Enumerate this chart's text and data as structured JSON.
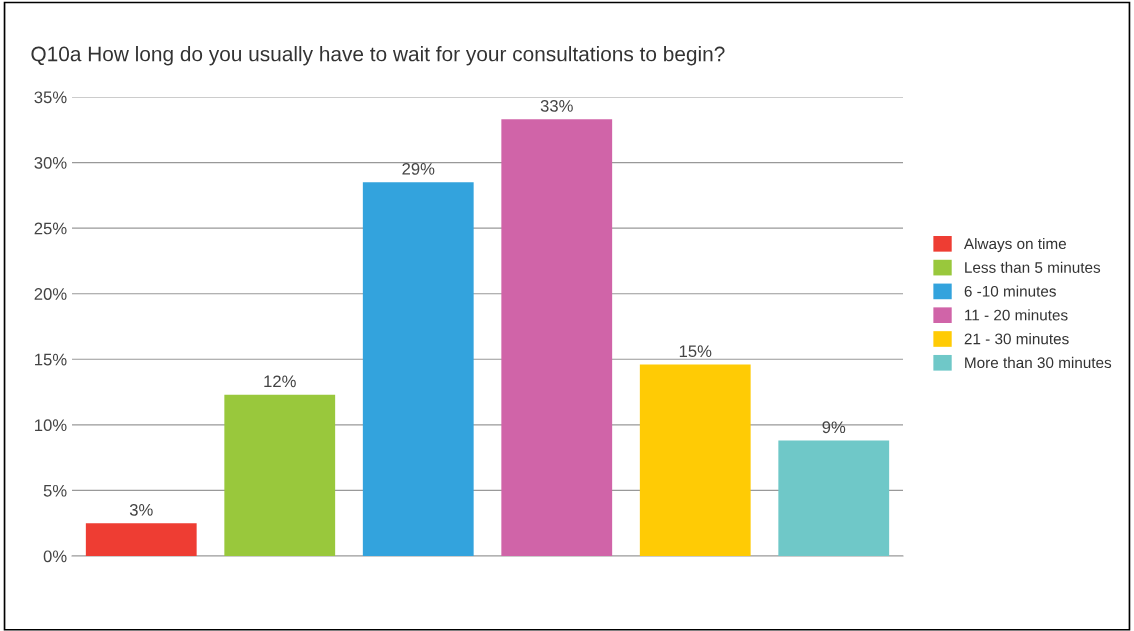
{
  "chart_data": {
    "type": "bar",
    "title": "Q10a How long do you usually have to wait for your consultations to begin?",
    "categories": [
      null,
      null,
      null,
      null,
      null,
      null
    ],
    "series": [
      {
        "name": "Always on time",
        "color": "#ee3d33",
        "values": [
          2.5,
          null,
          null,
          null,
          null,
          null
        ],
        "value_labels": [
          "3%",
          null,
          null,
          null,
          null,
          null
        ]
      },
      {
        "name": "Less than 5 minutes",
        "color": "#99c83c",
        "values": [
          null,
          12.3,
          null,
          null,
          null,
          null
        ],
        "value_labels": [
          null,
          "12%",
          null,
          null,
          null,
          null
        ]
      },
      {
        "name": "6 -10 minutes",
        "color": "#33a3dd",
        "values": [
          null,
          null,
          28.5,
          null,
          null,
          null
        ],
        "value_labels": [
          null,
          null,
          "29%",
          null,
          null,
          null
        ]
      },
      {
        "name": "11 - 20 minutes",
        "color": "#d064a8",
        "values": [
          null,
          null,
          null,
          33.3,
          null,
          null
        ],
        "value_labels": [
          null,
          null,
          null,
          "33%",
          null,
          null
        ]
      },
      {
        "name": "21 - 30 minutes",
        "color": "#ffcb05",
        "values": [
          null,
          null,
          null,
          null,
          14.6,
          null
        ],
        "value_labels": [
          null,
          null,
          null,
          null,
          "15%",
          null
        ]
      },
      {
        "name": "More than 30 minutes",
        "color": "#6fc8c8",
        "values": [
          null,
          null,
          null,
          null,
          null,
          8.8
        ],
        "value_labels": [
          null,
          null,
          null,
          null,
          null,
          "9%"
        ]
      }
    ],
    "ylim": [
      0,
      35
    ],
    "yticks": [
      {
        "value": 0,
        "label": "0%"
      },
      {
        "value": 5,
        "label": "5%"
      },
      {
        "value": 10,
        "label": "10%"
      },
      {
        "value": 15,
        "label": "15%"
      },
      {
        "value": 20,
        "label": "20%"
      },
      {
        "value": 25,
        "label": "25%"
      },
      {
        "value": 30,
        "label": "30%"
      },
      {
        "value": 35,
        "label": "35%"
      }
    ],
    "grid": "y",
    "legend": "right",
    "tick_labels": "y"
  }
}
